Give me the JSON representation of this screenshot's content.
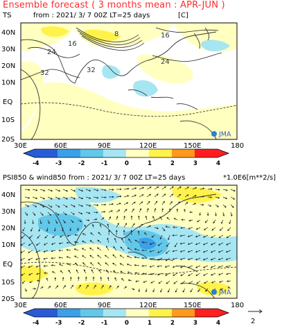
{
  "header": "Ensemble forecast ( 3 months mean : APR-JUN )",
  "panel1": {
    "var": "TS",
    "info": "from : 2021/ 3/ 7 00Z LT=25 days",
    "unit": "[C]",
    "contour_labels": [
      "8",
      "16",
      "16",
      "24",
      "24",
      "32",
      "32"
    ],
    "y_ticks": [
      "40N",
      "30N",
      "20N",
      "10N",
      "EQ",
      "10S",
      "20S"
    ],
    "x_ticks": [
      "30E",
      "60E",
      "90E",
      "120E",
      "150E",
      "180"
    ],
    "colorbar_ticks": [
      "-4",
      "-3",
      "-2",
      "-1",
      "0",
      "1",
      "2",
      "3",
      "4"
    ],
    "logo": "JMA"
  },
  "panel2": {
    "var": "PSI850 & wind850",
    "info": "from : 2021/ 3/ 7 00Z LT=25 days",
    "unit": "*1.0E6[m**2/s]",
    "y_ticks": [
      "40N",
      "30N",
      "20N",
      "10N",
      "EQ",
      "10S",
      "20S"
    ],
    "x_ticks": [
      "30E",
      "60E",
      "90E",
      "120E",
      "150E",
      "180"
    ],
    "colorbar_ticks": [
      "-4",
      "-3",
      "-2",
      "-1",
      "0",
      "1",
      "2",
      "3",
      "4"
    ],
    "logo": "JMA",
    "ref_vector_label": "2"
  },
  "colors": {
    "neg4": "#2a5bd7",
    "neg3": "#3aa0e8",
    "neg2": "#62c8ea",
    "neg1": "#a6e6f2",
    "pos1": "#ffffc0",
    "pos2": "#fff24a",
    "pos3": "#ff9a1f",
    "pos4": "#ff1f1f",
    "header": "#ff2a2a"
  }
}
